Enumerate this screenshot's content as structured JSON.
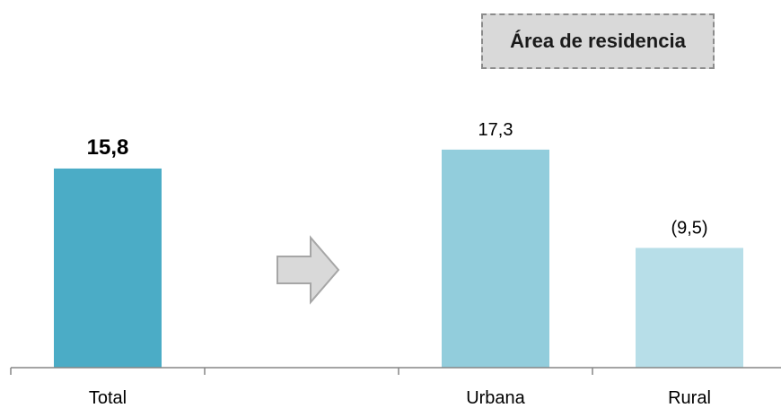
{
  "chart_data": {
    "type": "bar",
    "categories": [
      "Total",
      "",
      "Urbana",
      "Rural"
    ],
    "values": [
      15.8,
      null,
      17.3,
      9.5
    ],
    "data_labels": [
      "15,8",
      "",
      "17,3",
      "(9,5)"
    ],
    "label_bold": [
      true,
      false,
      false,
      false
    ],
    "colors": [
      "#4bacc6",
      null,
      "#92cddc",
      "#b7dee8"
    ],
    "group_label": "Área de residencia",
    "arrow_color": "#d9d9d9",
    "title": "",
    "xlabel": "",
    "ylabel": "",
    "ylim": [
      0,
      18.5
    ],
    "grid": false,
    "axes": "x-axis only, no y-axis"
  }
}
